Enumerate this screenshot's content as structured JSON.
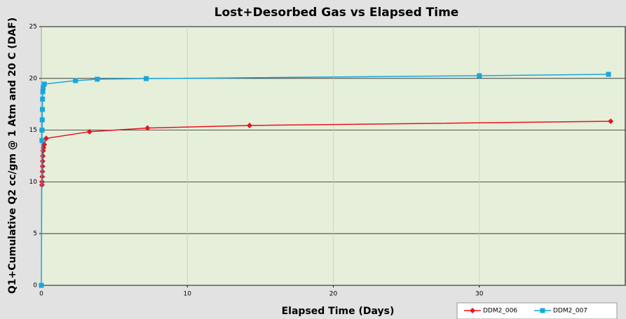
{
  "chart_data": {
    "type": "line",
    "title": "Lost+Desorbed Gas vs Elapsed Time",
    "x_label": "Elapsed Time (Days)",
    "y_label": "Q1+Cumulative Q2 cc/gm @ 1 Atm and 20 C (DAF)",
    "xlim": [
      0,
      40
    ],
    "ylim": [
      0,
      25
    ],
    "xticks": [
      0,
      10,
      20,
      30
    ],
    "yticks": [
      0,
      5,
      10,
      15,
      20,
      25
    ],
    "grid": true,
    "series": [
      {
        "name": "DDM2_006",
        "color": "#e8141b",
        "marker": "diamond",
        "x": [
          0.04,
          0.05,
          0.06,
          0.07,
          0.08,
          0.09,
          0.1,
          0.12,
          0.15,
          0.2,
          0.33,
          3.3,
          7.27,
          14.26,
          39.0
        ],
        "values": [
          9.7,
          10.0,
          10.5,
          11.0,
          11.5,
          12.0,
          12.5,
          13.0,
          13.3,
          13.6,
          14.2,
          14.85,
          15.2,
          15.45,
          15.85
        ]
      },
      {
        "name": "DDM2_007",
        "color": "#18a6dc",
        "marker": "square",
        "x": [
          0,
          0.04,
          0.05,
          0.06,
          0.07,
          0.08,
          0.1,
          0.12,
          0.2,
          2.34,
          3.83,
          7.18,
          30.0,
          38.85
        ],
        "values": [
          0,
          14.0,
          15.0,
          16.0,
          17.0,
          18.0,
          18.7,
          19.1,
          19.45,
          19.78,
          19.92,
          19.98,
          20.26,
          20.39
        ]
      }
    ]
  }
}
